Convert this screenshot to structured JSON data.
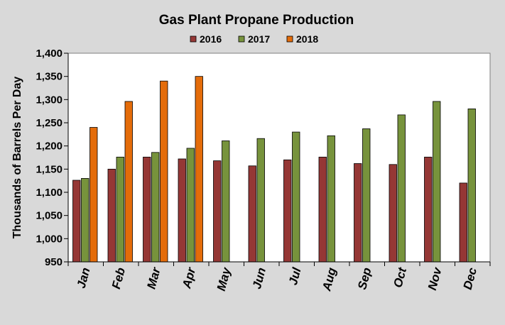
{
  "chart_data": {
    "type": "bar",
    "title": "Gas Plant Propane Production",
    "ylabel": "Thousands of Barrels Per Day",
    "xlabel": "",
    "ylim": [
      950,
      1400
    ],
    "ytick_step": 50,
    "yticks": [
      "950",
      "1,000",
      "1,050",
      "1,100",
      "1,150",
      "1,200",
      "1,250",
      "1,300",
      "1,350",
      "1,400"
    ],
    "categories": [
      "Jan",
      "Feb",
      "Mar",
      "Apr",
      "May",
      "Jun",
      "Jul",
      "Aug",
      "Sep",
      "Oct",
      "Nov",
      "Dec"
    ],
    "legend_position": "top",
    "grid": false,
    "series": [
      {
        "name": "2016",
        "color": "#953735",
        "values": [
          1126,
          1150,
          1176,
          1172,
          1168,
          1157,
          1170,
          1176,
          1162,
          1160,
          1176,
          1120
        ]
      },
      {
        "name": "2017",
        "color": "#77933c",
        "values": [
          1130,
          1176,
          1186,
          1195,
          1211,
          1216,
          1230,
          1222,
          1237,
          1267,
          1296,
          1280
        ]
      },
      {
        "name": "2018",
        "color": "#e46c0a",
        "values": [
          1240,
          1296,
          1340,
          1350,
          null,
          null,
          null,
          null,
          null,
          null,
          null,
          null
        ]
      }
    ]
  }
}
